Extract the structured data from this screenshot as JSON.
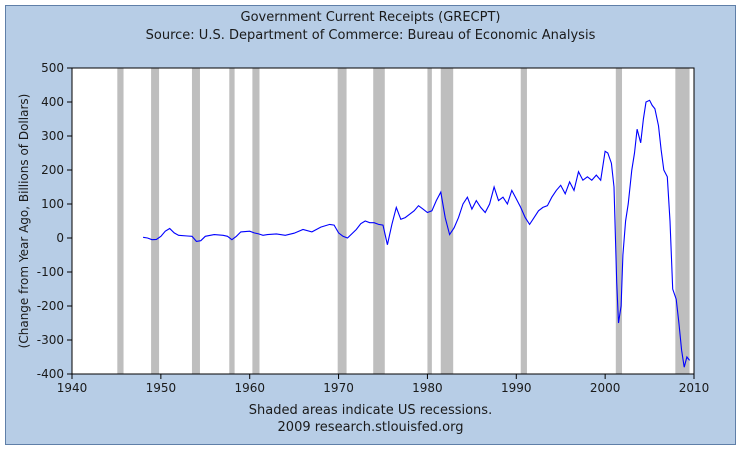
{
  "chart_data": {
    "type": "line",
    "title": "Government Current Receipts (GRECPT)",
    "subtitle": "Source: U.S. Department of Commerce: Bureau of Economic Analysis",
    "xlabel": "",
    "ylabel": "(Change from Year Ago, Billions of Dollars)",
    "footnotes": [
      "Shaded areas indicate US recessions.",
      "2009 research.stlouisfed.org"
    ],
    "xlim": [
      1940,
      2010
    ],
    "ylim": [
      -400,
      500
    ],
    "x_ticks": [
      "1940",
      "1950",
      "1960",
      "1970",
      "1980",
      "1990",
      "2000",
      "2010"
    ],
    "y_ticks": [
      "500",
      "400",
      "300",
      "200",
      "100",
      "0",
      "-100",
      "-200",
      "-300",
      "-400"
    ],
    "grid": false,
    "line_color": "#0000ff",
    "recession_color": "#bebebe",
    "recessions": [
      [
        1945.1,
        1945.8
      ],
      [
        1948.9,
        1949.8
      ],
      [
        1953.5,
        1954.4
      ],
      [
        1957.7,
        1958.3
      ],
      [
        1960.3,
        1961.1
      ],
      [
        1969.9,
        1970.9
      ],
      [
        1973.9,
        1975.2
      ],
      [
        1980.0,
        1980.5
      ],
      [
        1981.5,
        1982.9
      ],
      [
        1990.5,
        1991.2
      ],
      [
        2001.2,
        2001.9
      ],
      [
        2007.9,
        2009.5
      ]
    ],
    "series": [
      {
        "x": [
          1948.0,
          1948.5,
          1949.0,
          1949.5,
          1950.0,
          1950.5,
          1951.0,
          1951.5,
          1952.0,
          1953.0,
          1953.5,
          1954.0,
          1954.5,
          1955.0,
          1956.0,
          1957.0,
          1957.5,
          1958.0,
          1958.5,
          1959.0,
          1960.0,
          1960.5,
          1961.0,
          1961.5,
          1962.0,
          1963.0,
          1964.0,
          1965.0,
          1966.0,
          1967.0,
          1968.0,
          1969.0,
          1969.5,
          1970.0,
          1970.5,
          1971.0,
          1972.0,
          1972.5,
          1973.0,
          1973.5,
          1974.0,
          1974.5,
          1975.0,
          1975.5,
          1976.0,
          1976.5,
          1977.0,
          1977.5,
          1978.0,
          1978.5,
          1979.0,
          1979.5,
          1980.0,
          1980.5,
          1981.0,
          1981.5,
          1982.0,
          1982.5,
          1983.0,
          1983.5,
          1984.0,
          1984.5,
          1985.0,
          1985.5,
          1986.0,
          1986.5,
          1987.0,
          1987.5,
          1988.0,
          1988.5,
          1989.0,
          1989.5,
          1990.0,
          1990.5,
          1991.0,
          1991.5,
          1992.0,
          1992.5,
          1993.0,
          1993.5,
          1994.0,
          1994.5,
          1995.0,
          1995.5,
          1996.0,
          1996.5,
          1997.0,
          1997.5,
          1998.0,
          1998.5,
          1999.0,
          1999.5,
          2000.0,
          2000.3,
          2000.7,
          2001.0,
          2001.3,
          2001.5,
          2001.8,
          2002.0,
          2002.3,
          2002.6,
          2003.0,
          2003.3,
          2003.6,
          2004.0,
          2004.3,
          2004.6,
          2005.0,
          2005.3,
          2005.6,
          2006.0,
          2006.3,
          2006.6,
          2007.0,
          2007.3,
          2007.6,
          2008.0,
          2008.3,
          2008.6,
          2008.9,
          2009.2,
          2009.5
        ],
        "y": [
          2,
          0,
          -5,
          -4,
          5,
          20,
          28,
          15,
          8,
          6,
          5,
          -10,
          -8,
          5,
          10,
          8,
          5,
          -5,
          5,
          18,
          20,
          15,
          12,
          8,
          10,
          12,
          8,
          14,
          25,
          18,
          32,
          40,
          38,
          15,
          5,
          0,
          25,
          42,
          50,
          45,
          45,
          40,
          38,
          -20,
          40,
          90,
          55,
          60,
          70,
          80,
          95,
          85,
          75,
          80,
          110,
          135,
          60,
          10,
          30,
          60,
          100,
          120,
          85,
          110,
          90,
          75,
          100,
          150,
          110,
          120,
          100,
          140,
          115,
          90,
          60,
          40,
          60,
          80,
          90,
          95,
          120,
          140,
          155,
          130,
          165,
          140,
          195,
          170,
          180,
          170,
          185,
          170,
          255,
          250,
          220,
          150,
          -130,
          -250,
          -200,
          -50,
          50,
          100,
          200,
          250,
          320,
          280,
          350,
          400,
          405,
          390,
          380,
          330,
          260,
          200,
          180,
          50,
          -150,
          -180,
          -250,
          -330,
          -380,
          -350,
          -360
        ]
      }
    ]
  }
}
